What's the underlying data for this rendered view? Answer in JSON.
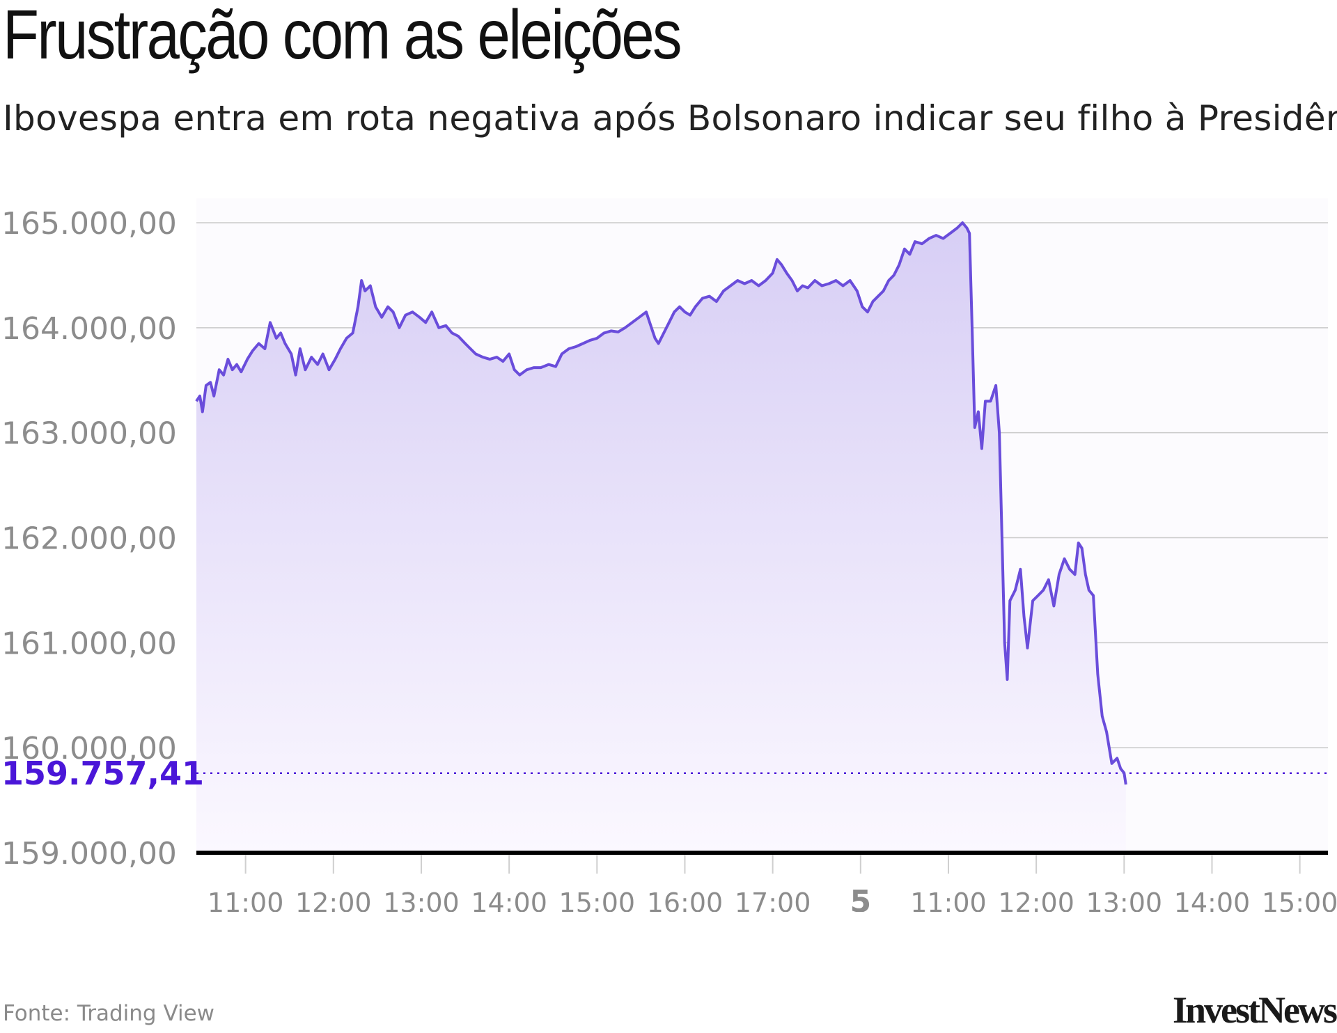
{
  "title": "Frustração com as eleições",
  "subtitle": "Ibovespa entra em rota negativa após Bolsonaro indicar seu filho à Presidência",
  "source": "Fonte: Trading View",
  "logo": "InvestNews",
  "colors": {
    "line": "#6a4ddb",
    "fill_top": "#d7cef5",
    "fill_bottom": "#fbf8ff",
    "last_value": "#4a16d8",
    "baseline": "#000000",
    "grid": "#c9c9c9"
  },
  "chart_data": {
    "type": "area",
    "title": "Frustração com as eleições",
    "subtitle": "Ibovespa entra em rota negativa após Bolsonaro indicar seu filho à Presidência",
    "ylim": [
      159000,
      165000
    ],
    "y_ticks": [
      {
        "value": 165000,
        "label": "165.000,00"
      },
      {
        "value": 164000,
        "label": "164.000,00"
      },
      {
        "value": 163000,
        "label": "163.000,00"
      },
      {
        "value": 162000,
        "label": "162.000,00"
      },
      {
        "value": 161000,
        "label": "161.000,00"
      },
      {
        "value": 160000,
        "label": "160.000,00"
      },
      {
        "value": 159000,
        "label": "159.000,00"
      }
    ],
    "x_ticks": [
      {
        "x": 1.5,
        "label": "11:00",
        "bold": false
      },
      {
        "x": 2.5,
        "label": "12:00",
        "bold": false
      },
      {
        "x": 3.5,
        "label": "13:00",
        "bold": false
      },
      {
        "x": 4.5,
        "label": "14:00",
        "bold": false
      },
      {
        "x": 5.5,
        "label": "15:00",
        "bold": false
      },
      {
        "x": 6.5,
        "label": "16:00",
        "bold": false
      },
      {
        "x": 7.5,
        "label": "17:00",
        "bold": false
      },
      {
        "x": 8.5,
        "label": "5",
        "bold": true
      },
      {
        "x": 9.5,
        "label": "11:00",
        "bold": false
      },
      {
        "x": 10.5,
        "label": "12:00",
        "bold": false
      },
      {
        "x": 11.5,
        "label": "13:00",
        "bold": false
      },
      {
        "x": 12.5,
        "label": "14:00",
        "bold": false
      },
      {
        "x": 13.5,
        "label": "15:00",
        "bold": false
      }
    ],
    "xlim": [
      0.94,
      13.82
    ],
    "last_value": {
      "value": 159757.41,
      "label": "159.757,41"
    },
    "series": [
      {
        "values": [
          [
            0.94,
            163300
          ],
          [
            0.98,
            163350
          ],
          [
            1.01,
            163200
          ],
          [
            1.05,
            163450
          ],
          [
            1.1,
            163480
          ],
          [
            1.14,
            163350
          ],
          [
            1.2,
            163600
          ],
          [
            1.25,
            163550
          ],
          [
            1.3,
            163700
          ],
          [
            1.35,
            163600
          ],
          [
            1.4,
            163650
          ],
          [
            1.45,
            163580
          ],
          [
            1.52,
            163700
          ],
          [
            1.58,
            163780
          ],
          [
            1.65,
            163850
          ],
          [
            1.72,
            163800
          ],
          [
            1.78,
            164050
          ],
          [
            1.85,
            163900
          ],
          [
            1.9,
            163950
          ],
          [
            1.95,
            163850
          ],
          [
            2.02,
            163750
          ],
          [
            2.07,
            163550
          ],
          [
            2.12,
            163800
          ],
          [
            2.18,
            163600
          ],
          [
            2.25,
            163720
          ],
          [
            2.32,
            163650
          ],
          [
            2.38,
            163750
          ],
          [
            2.45,
            163600
          ],
          [
            2.52,
            163700
          ],
          [
            2.58,
            163800
          ],
          [
            2.65,
            163900
          ],
          [
            2.72,
            163950
          ],
          [
            2.78,
            164200
          ],
          [
            2.82,
            164450
          ],
          [
            2.86,
            164350
          ],
          [
            2.92,
            164400
          ],
          [
            2.98,
            164200
          ],
          [
            3.05,
            164100
          ],
          [
            3.12,
            164200
          ],
          [
            3.18,
            164150
          ],
          [
            3.25,
            164000
          ],
          [
            3.32,
            164120
          ],
          [
            3.4,
            164150
          ],
          [
            3.48,
            164100
          ],
          [
            3.55,
            164050
          ],
          [
            3.62,
            164150
          ],
          [
            3.7,
            164000
          ],
          [
            3.78,
            164020
          ],
          [
            3.85,
            163950
          ],
          [
            3.92,
            163920
          ],
          [
            4.0,
            163850
          ],
          [
            4.06,
            163800
          ],
          [
            4.12,
            163750
          ],
          [
            4.2,
            163720
          ],
          [
            4.28,
            163700
          ],
          [
            4.36,
            163720
          ],
          [
            4.43,
            163680
          ],
          [
            4.5,
            163750
          ],
          [
            4.56,
            163600
          ],
          [
            4.62,
            163550
          ],
          [
            4.7,
            163600
          ],
          [
            4.78,
            163620
          ],
          [
            4.86,
            163620
          ],
          [
            4.95,
            163650
          ],
          [
            5.03,
            163630
          ],
          [
            5.1,
            163750
          ],
          [
            5.18,
            163800
          ],
          [
            5.26,
            163820
          ],
          [
            5.34,
            163850
          ],
          [
            5.42,
            163880
          ],
          [
            5.5,
            163900
          ],
          [
            5.58,
            163950
          ],
          [
            5.66,
            163970
          ],
          [
            5.74,
            163960
          ],
          [
            5.82,
            164000
          ],
          [
            5.9,
            164050
          ],
          [
            5.98,
            164100
          ],
          [
            6.06,
            164150
          ],
          [
            6.1,
            164050
          ],
          [
            6.16,
            163900
          ],
          [
            6.2,
            163850
          ],
          [
            6.26,
            163950
          ],
          [
            6.32,
            164050
          ],
          [
            6.38,
            164150
          ],
          [
            6.44,
            164200
          ],
          [
            6.5,
            164150
          ],
          [
            6.56,
            164120
          ],
          [
            6.62,
            164200
          ],
          [
            6.7,
            164280
          ],
          [
            6.78,
            164300
          ],
          [
            6.86,
            164250
          ],
          [
            6.94,
            164350
          ],
          [
            7.02,
            164400
          ],
          [
            7.1,
            164450
          ],
          [
            7.18,
            164420
          ],
          [
            7.26,
            164450
          ],
          [
            7.34,
            164400
          ],
          [
            7.42,
            164450
          ],
          [
            7.5,
            164520
          ],
          [
            7.55,
            164650
          ],
          [
            7.6,
            164600
          ],
          [
            7.66,
            164520
          ],
          [
            7.72,
            164450
          ],
          [
            7.78,
            164350
          ],
          [
            7.84,
            164400
          ],
          [
            7.9,
            164380
          ],
          [
            7.98,
            164450
          ],
          [
            8.06,
            164400
          ],
          [
            8.14,
            164420
          ],
          [
            8.22,
            164450
          ],
          [
            8.3,
            164400
          ],
          [
            8.38,
            164450
          ],
          [
            8.46,
            164350
          ],
          [
            8.52,
            164200
          ],
          [
            8.58,
            164150
          ],
          [
            8.64,
            164250
          ],
          [
            8.7,
            164300
          ],
          [
            8.76,
            164350
          ],
          [
            8.82,
            164450
          ],
          [
            8.88,
            164500
          ],
          [
            8.94,
            164600
          ],
          [
            9.0,
            164750
          ],
          [
            9.06,
            164700
          ],
          [
            9.12,
            164820
          ],
          [
            9.2,
            164800
          ],
          [
            9.28,
            164850
          ],
          [
            9.36,
            164880
          ],
          [
            9.44,
            164850
          ],
          [
            9.52,
            164900
          ],
          [
            9.6,
            164950
          ],
          [
            9.66,
            165000
          ],
          [
            9.71,
            164950
          ],
          [
            9.74,
            164900
          ],
          [
            9.77,
            164000
          ],
          [
            9.8,
            163050
          ],
          [
            9.84,
            163200
          ],
          [
            9.88,
            162850
          ],
          [
            9.92,
            163300
          ],
          [
            9.98,
            163300
          ],
          [
            10.04,
            163450
          ],
          [
            10.08,
            163000
          ],
          [
            10.11,
            162000
          ],
          [
            10.14,
            161000
          ],
          [
            10.17,
            160650
          ],
          [
            10.2,
            161400
          ],
          [
            10.26,
            161500
          ],
          [
            10.32,
            161700
          ],
          [
            10.36,
            161250
          ],
          [
            10.4,
            160950
          ],
          [
            10.46,
            161400
          ],
          [
            10.52,
            161450
          ],
          [
            10.58,
            161500
          ],
          [
            10.64,
            161600
          ],
          [
            10.7,
            161350
          ],
          [
            10.76,
            161650
          ],
          [
            10.82,
            161800
          ],
          [
            10.88,
            161700
          ],
          [
            10.94,
            161650
          ],
          [
            10.98,
            161950
          ],
          [
            11.02,
            161900
          ],
          [
            11.06,
            161650
          ],
          [
            11.1,
            161500
          ],
          [
            11.15,
            161450
          ],
          [
            11.2,
            160700
          ],
          [
            11.25,
            160300
          ],
          [
            11.3,
            160150
          ],
          [
            11.36,
            159850
          ],
          [
            11.42,
            159900
          ],
          [
            11.46,
            159800
          ],
          [
            11.5,
            159760
          ],
          [
            11.52,
            159650
          ]
        ]
      }
    ]
  }
}
